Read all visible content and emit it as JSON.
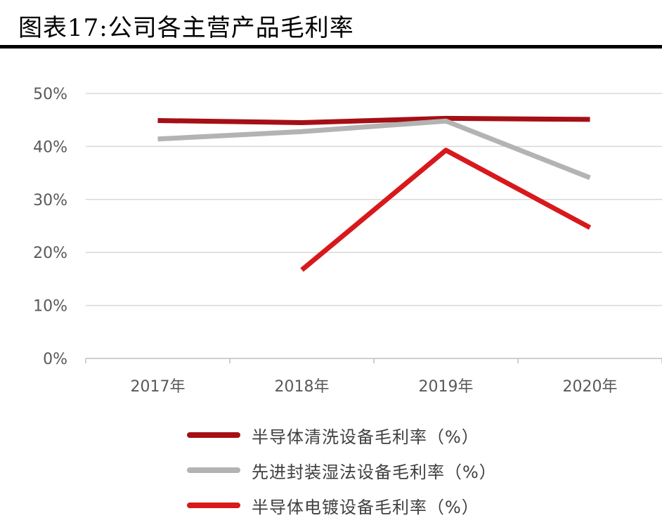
{
  "title": "图表17:公司各主营产品毛利率",
  "chart_data": {
    "type": "line",
    "title": "图表17:公司各主营产品毛利率",
    "categories": [
      "2017年",
      "2018年",
      "2019年",
      "2020年"
    ],
    "ylim": [
      0,
      50
    ],
    "yticks": [
      0,
      10,
      20,
      30,
      40,
      50
    ],
    "ytick_labels": [
      "0%",
      "10%",
      "20%",
      "30%",
      "40%",
      "50%"
    ],
    "grid": true,
    "legend_position": "bottom",
    "series": [
      {
        "name": "半导体清洗设备毛利率（%）",
        "color": "#A50F15",
        "values": [
          44.9,
          44.5,
          45.3,
          45.1
        ]
      },
      {
        "name": "先进封装湿法设备毛利率（%）",
        "color": "#B3B3B3",
        "values": [
          41.4,
          42.8,
          44.8,
          34.1
        ]
      },
      {
        "name": "半导体电镀设备毛利率（%）",
        "color": "#D7191C",
        "values": [
          null,
          16.7,
          39.3,
          24.7
        ]
      }
    ]
  }
}
